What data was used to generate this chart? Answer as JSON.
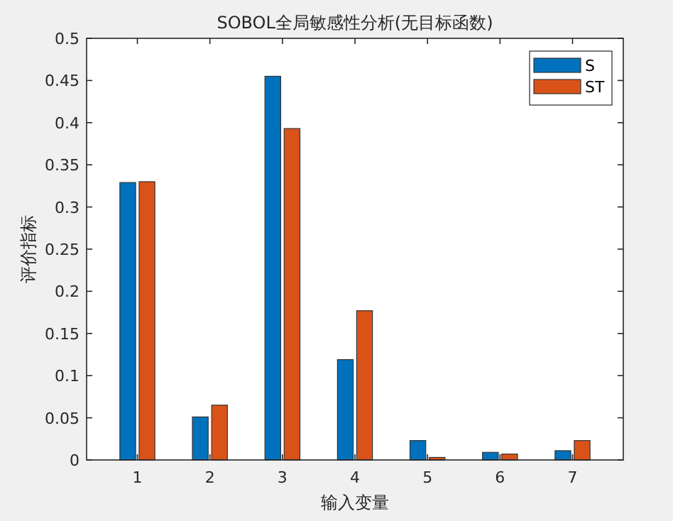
{
  "chart_data": {
    "type": "bar",
    "title": "SOBOL全局敏感性分析(无目标函数)",
    "xlabel": "输入变量",
    "ylabel": "评价指标",
    "categories": [
      "1",
      "2",
      "3",
      "4",
      "5",
      "6",
      "7"
    ],
    "series": [
      {
        "name": "S",
        "color": "#0072bd",
        "values": [
          0.329,
          0.051,
          0.455,
          0.119,
          0.023,
          0.009,
          0.011
        ]
      },
      {
        "name": "ST",
        "color": "#d95319",
        "values": [
          0.33,
          0.065,
          0.393,
          0.177,
          0.003,
          0.007,
          0.023
        ]
      }
    ],
    "ylim": [
      0,
      0.5
    ],
    "yticks": [
      0,
      0.05,
      0.1,
      0.15,
      0.2,
      0.25,
      0.3,
      0.35,
      0.4,
      0.45,
      0.5
    ],
    "legend": "top right",
    "grid": false
  }
}
